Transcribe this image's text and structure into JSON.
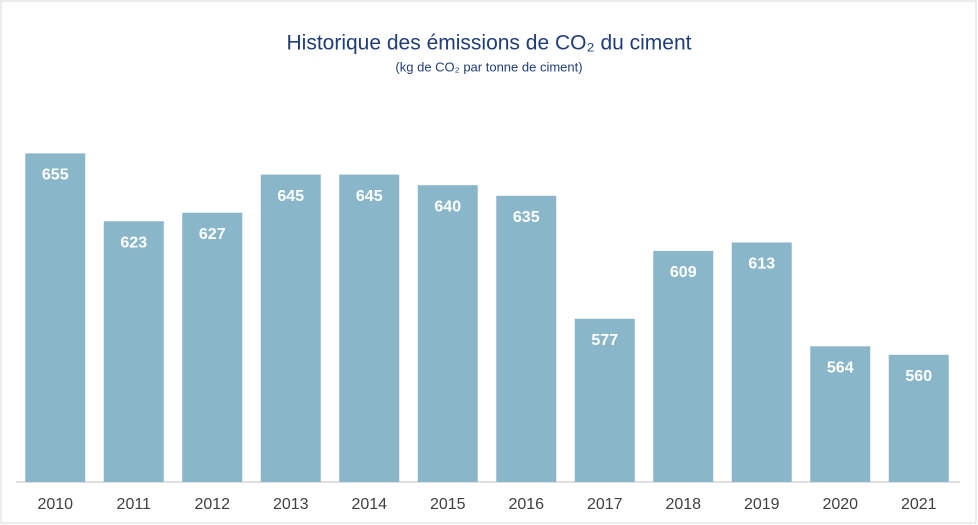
{
  "chart_data": {
    "type": "bar",
    "title": "Historique des émissions de CO₂ du ciment",
    "subtitle": "(kg de CO₂ par tonne de ciment)",
    "categories": [
      "2010",
      "2011",
      "2012",
      "2013",
      "2014",
      "2015",
      "2016",
      "2017",
      "2018",
      "2019",
      "2020",
      "2021"
    ],
    "values": [
      655,
      623,
      627,
      645,
      645,
      640,
      635,
      577,
      609,
      613,
      564,
      560
    ],
    "color": "#8ab6c9",
    "ylim": [
      500,
      700
    ]
  }
}
